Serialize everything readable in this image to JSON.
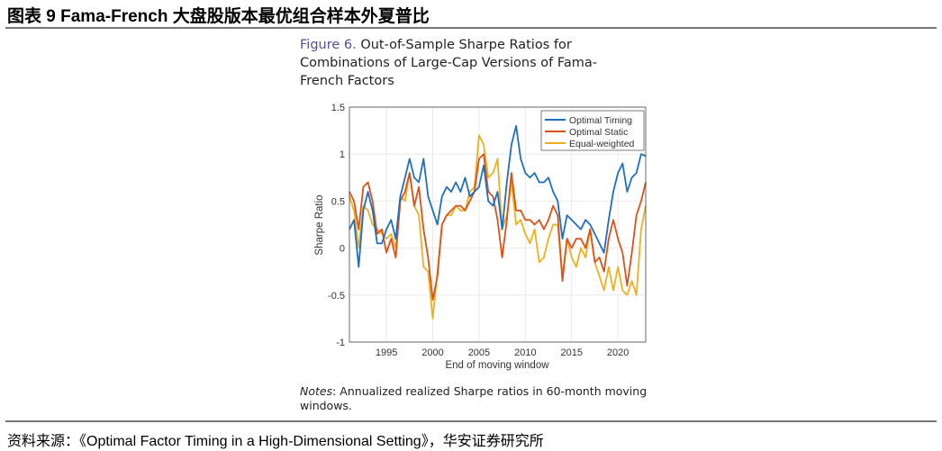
{
  "header": {
    "title": "图表 9 Fama-French 大盘股版本最优组合样本外夏普比"
  },
  "caption": {
    "figure_label": "Figure 6.",
    "line1": "Out-of-Sample Sharpe Ratios for",
    "line2": "Combinations of Large-Cap Versions of Fama-",
    "line3": "French Factors"
  },
  "notes": {
    "label": "Notes",
    "text": ": Annualized realized Sharpe ratios in 60-month moving windows."
  },
  "footer": {
    "source": "资料来源：《Optimal Factor Timing in a High-Dimensional Setting》，华安证券研究所"
  },
  "chart_data": {
    "type": "line",
    "xlabel": "End of moving window",
    "ylabel": "Sharpe Ratio",
    "xlim": [
      1991,
      2023
    ],
    "ylim": [
      -1,
      1.5
    ],
    "xticks": [
      1995,
      2000,
      2005,
      2010,
      2015,
      2020
    ],
    "yticks": [
      -1,
      -0.5,
      0,
      0.5,
      1,
      1.5
    ],
    "ytick_labels": [
      "-1",
      "-0.5",
      "0",
      "0.5",
      "1",
      "1.5"
    ],
    "grid": true,
    "legend_position": "top-right",
    "x": [
      1991,
      1991.5,
      1992,
      1992.5,
      1993,
      1993.5,
      1994,
      1994.5,
      1995,
      1995.5,
      1996,
      1996.5,
      1997,
      1997.5,
      1998,
      1998.5,
      1999,
      1999.5,
      2000,
      2000.5,
      2001,
      2001.5,
      2002,
      2002.5,
      2003,
      2003.5,
      2004,
      2004.5,
      2005,
      2005.5,
      2006,
      2006.5,
      2007,
      2007.5,
      2008,
      2008.5,
      2009,
      2009.5,
      2010,
      2010.5,
      2011,
      2011.5,
      2012,
      2012.5,
      2013,
      2013.5,
      2014,
      2014.5,
      2015,
      2015.5,
      2016,
      2016.5,
      2017,
      2017.5,
      2018,
      2018.5,
      2019,
      2019.5,
      2020,
      2020.5,
      2021,
      2021.5,
      2022,
      2022.5,
      2023
    ],
    "series": [
      {
        "name": "Optimal Timing",
        "color": "#1f6fbf",
        "values": [
          0.2,
          0.3,
          -0.2,
          0.4,
          0.6,
          0.4,
          0.05,
          0.05,
          0.2,
          0.3,
          0.1,
          0.55,
          0.75,
          0.95,
          0.75,
          0.7,
          0.95,
          0.55,
          0.4,
          0.25,
          0.55,
          0.65,
          0.6,
          0.7,
          0.6,
          0.75,
          0.55,
          0.6,
          0.65,
          0.88,
          0.5,
          0.45,
          0.6,
          0.2,
          0.7,
          1.1,
          1.3,
          0.95,
          0.8,
          0.75,
          0.8,
          0.7,
          0.7,
          0.75,
          0.6,
          0.5,
          0.1,
          0.35,
          0.3,
          0.25,
          0.2,
          0.3,
          0.25,
          0.15,
          0.05,
          -0.05,
          0.3,
          0.6,
          0.8,
          0.9,
          0.6,
          0.75,
          0.8,
          1.0,
          0.98
        ]
      },
      {
        "name": "Optimal Static",
        "color": "#d95319",
        "values": [
          0.6,
          0.5,
          0.2,
          0.65,
          0.7,
          0.5,
          0.15,
          0.2,
          -0.05,
          0.1,
          -0.1,
          0.5,
          0.6,
          0.8,
          0.45,
          0.65,
          0.2,
          -0.1,
          -0.55,
          -0.3,
          0.25,
          0.35,
          0.4,
          0.45,
          0.45,
          0.4,
          0.5,
          0.6,
          0.95,
          1.0,
          0.6,
          0.55,
          0.3,
          -0.1,
          0.3,
          0.8,
          0.4,
          0.4,
          0.3,
          0.3,
          0.25,
          0.3,
          0.2,
          0.3,
          0.45,
          0.35,
          -0.35,
          0.1,
          0.0,
          0.1,
          0.1,
          0.0,
          0.2,
          -0.15,
          -0.1,
          -0.25,
          0.1,
          0.3,
          0.1,
          -0.05,
          -0.4,
          -0.05,
          0.35,
          0.5,
          0.7
        ]
      },
      {
        "name": "Equal-weighted",
        "color": "#edb120",
        "values": [
          0.55,
          0.4,
          0.0,
          0.45,
          0.4,
          0.25,
          0.2,
          0.15,
          0.1,
          0.15,
          0.0,
          0.55,
          0.5,
          0.8,
          0.45,
          0.35,
          -0.2,
          -0.25,
          -0.75,
          -0.25,
          0.25,
          0.35,
          0.35,
          0.45,
          0.4,
          0.4,
          0.6,
          0.65,
          1.2,
          1.1,
          0.75,
          0.8,
          0.95,
          0.2,
          0.35,
          0.7,
          0.25,
          0.3,
          0.15,
          0.05,
          0.2,
          -0.15,
          -0.1,
          0.1,
          0.25,
          0.25,
          -0.3,
          0.1,
          -0.1,
          -0.2,
          0.0,
          -0.1,
          0.2,
          -0.15,
          -0.3,
          -0.45,
          -0.2,
          -0.45,
          -0.2,
          -0.45,
          -0.5,
          -0.35,
          -0.5,
          0.2,
          0.45
        ]
      }
    ]
  }
}
